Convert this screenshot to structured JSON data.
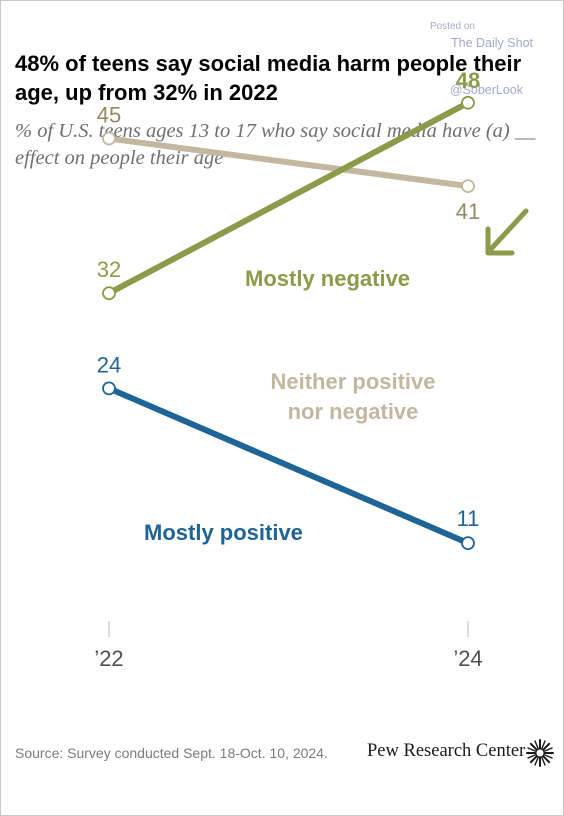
{
  "header": {
    "title": "48% of teens say social media harm people their age, up from 32% in 2022",
    "subtitle": "% of U.S. teens ages 13 to 17 who say social media have (a) __ effect on people their age"
  },
  "watermark": {
    "posted": "Posted on",
    "source": "The Daily Shot",
    "handle": "@SoberLook"
  },
  "footer": {
    "source": "Source: Survey conducted Sept. 18-Oct. 10, 2024.",
    "brand": "Pew Research Center",
    "brand_icon": "pew-sunburst-icon"
  },
  "colors": {
    "negative": "#8c9b4a",
    "neutral": "#c3b89f",
    "positive": "#1f6496",
    "axis": "#c8c8c8",
    "tick_text": "#505050",
    "arrow": "#8c9b4a"
  },
  "chart_data": {
    "type": "line",
    "x": [
      "’22",
      "’24"
    ],
    "ylim": [
      0,
      55
    ],
    "grid": false,
    "legend": "direct labels on lines",
    "annotation": "arrow pointing to 48",
    "series": [
      {
        "key": "negative",
        "name": "Mostly negative",
        "values": [
          32,
          48
        ],
        "color": "#8c9b4a"
      },
      {
        "key": "neutral",
        "name": "Neither positive nor negative",
        "values": [
          45,
          41
        ],
        "color": "#c3b89f"
      },
      {
        "key": "positive",
        "name": "Mostly positive",
        "values": [
          24,
          11
        ],
        "color": "#1f6496"
      }
    ]
  }
}
